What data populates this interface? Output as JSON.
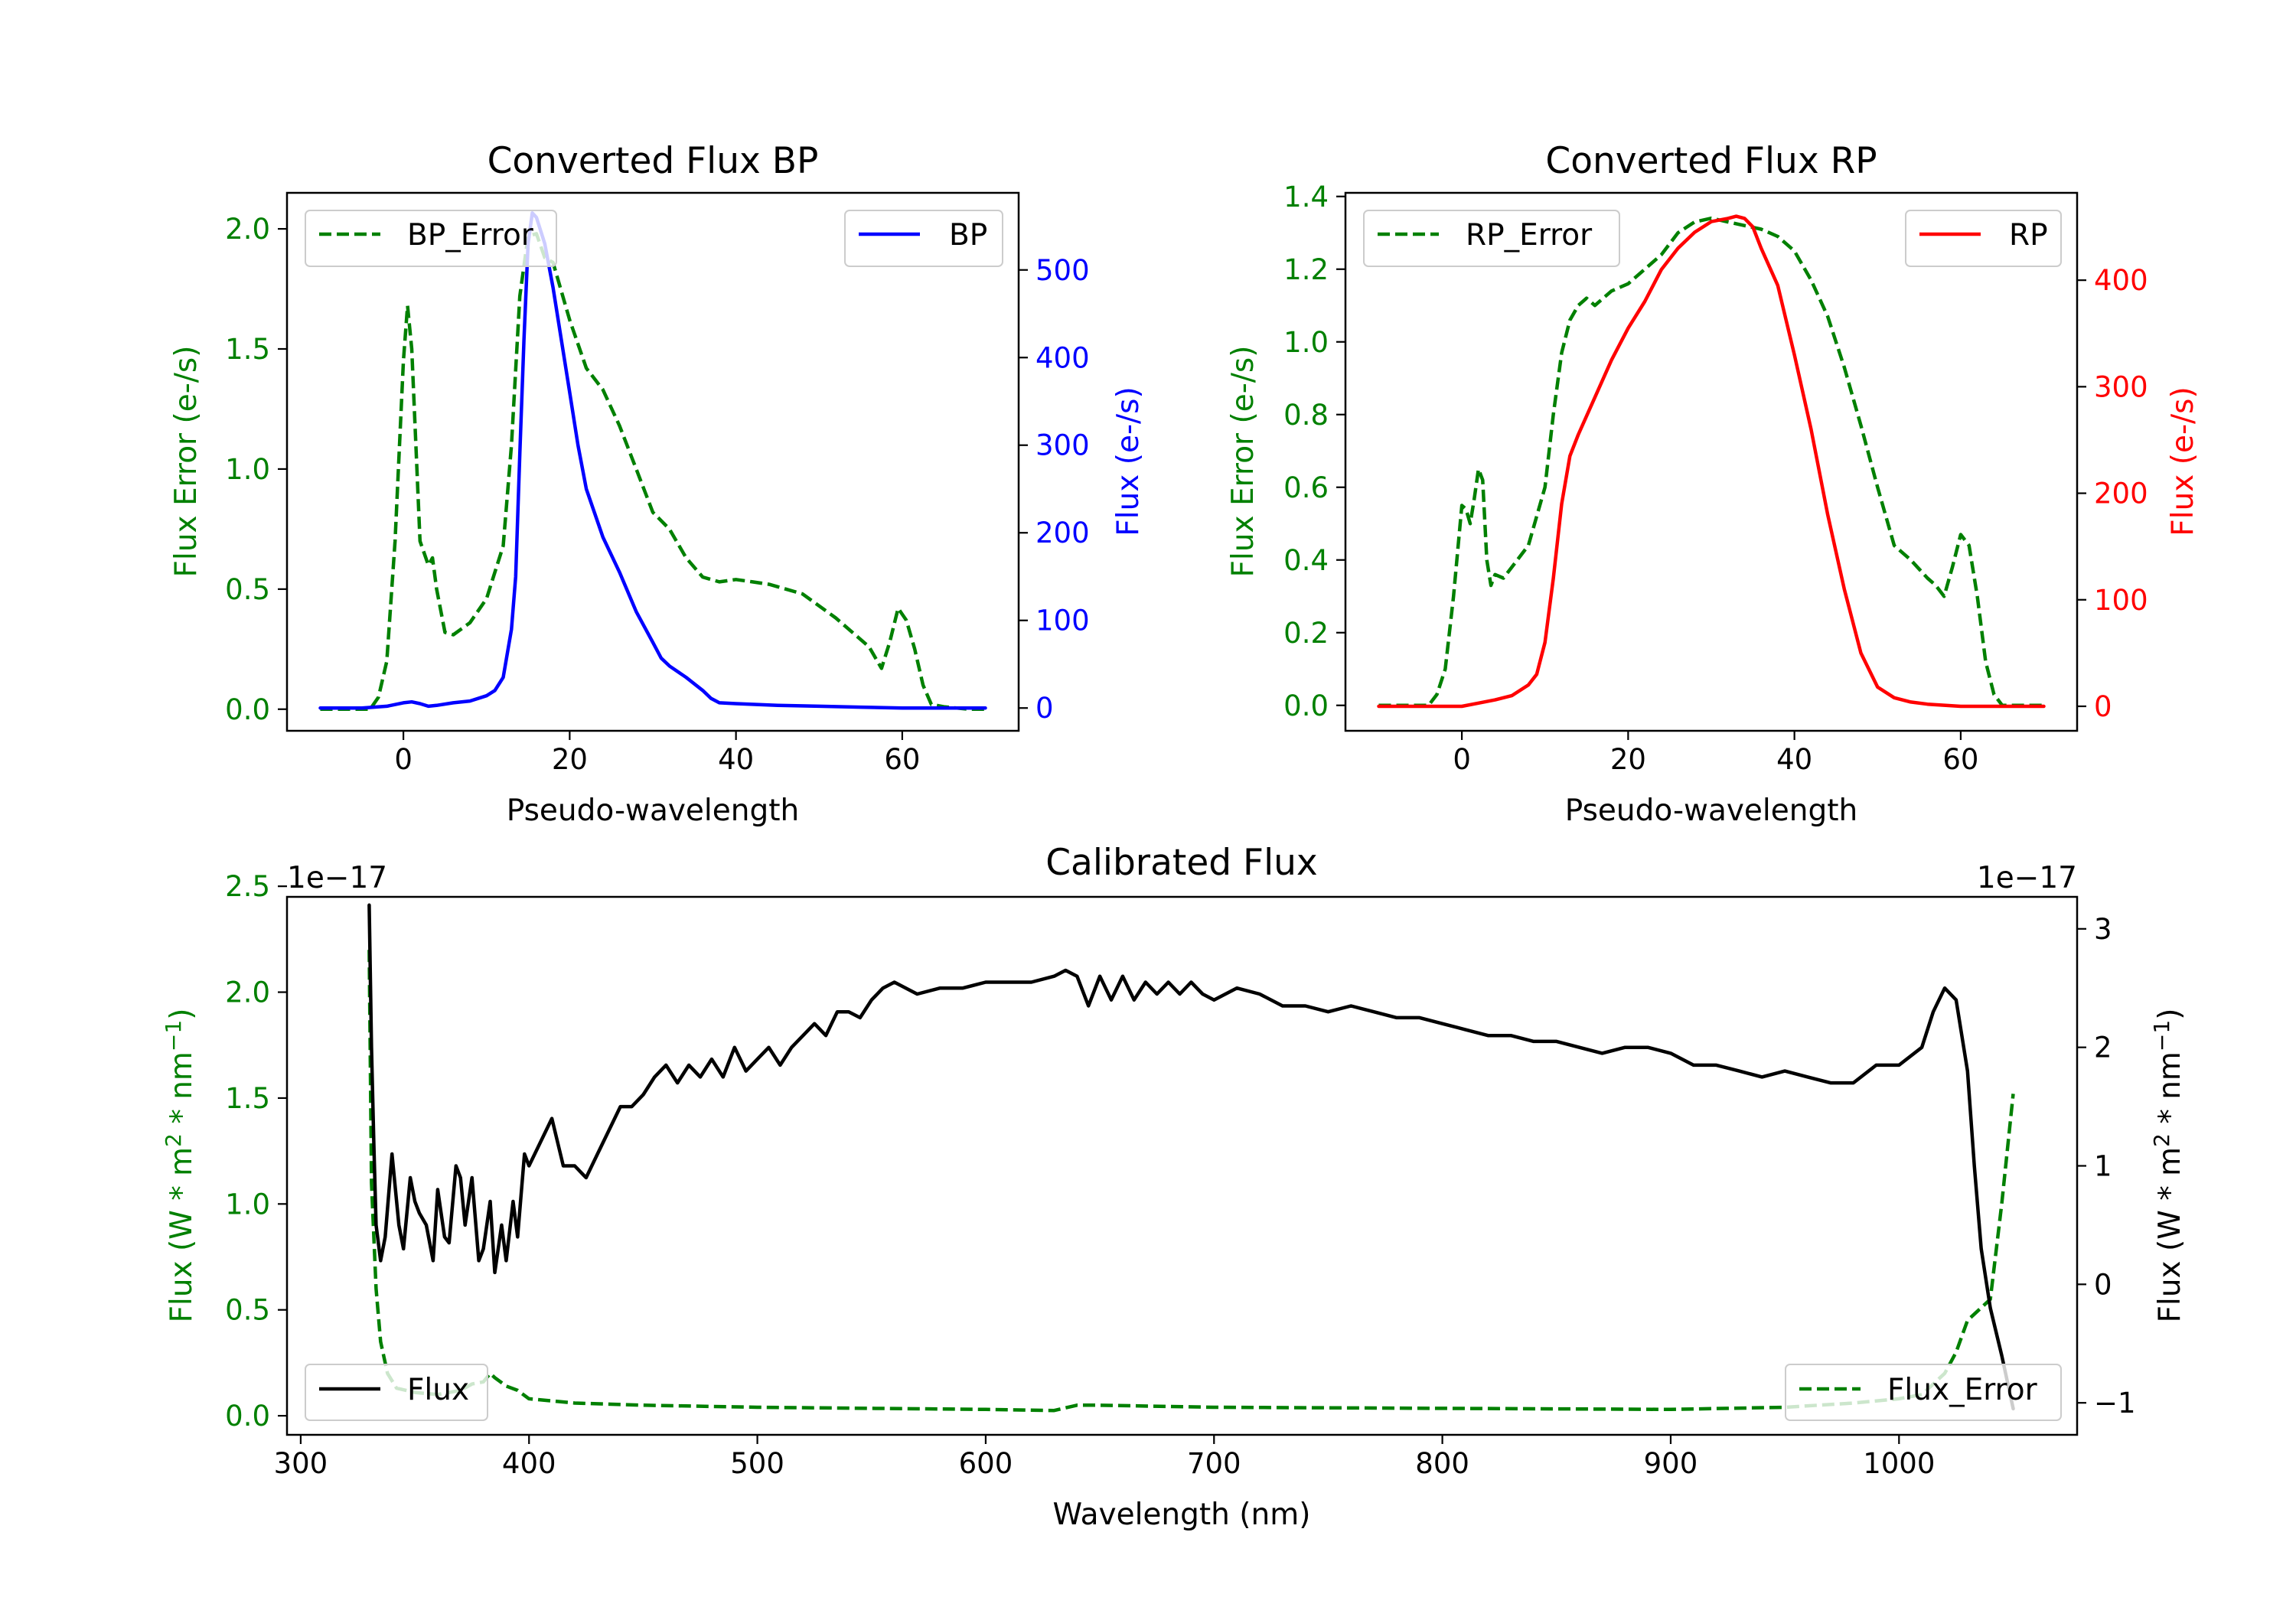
{
  "chart_data": [
    {
      "type": "line",
      "title": "Converted Flux BP",
      "xlabel": "Pseudo-wavelength",
      "ylabel_left": "Flux Error (e-/s)",
      "ylabel_right": "Flux (e-/s)",
      "xlim": [
        -14,
        74
      ],
      "ylim_left": [
        -0.09,
        2.15
      ],
      "ylim_right": [
        -26,
        588
      ],
      "xticks": [
        0,
        20,
        40,
        60
      ],
      "yticks_left": [
        0.0,
        0.5,
        1.0,
        1.5,
        2.0
      ],
      "yticks_right": [
        0,
        100,
        200,
        300,
        400,
        500
      ],
      "legend_left": {
        "position": "upper left",
        "labels": [
          "BP_Error"
        ]
      },
      "legend_right": {
        "position": "upper right",
        "labels": [
          "BP"
        ]
      },
      "series": [
        {
          "name": "BP_Error",
          "axis": "left",
          "style": "dashed",
          "color": "#008000",
          "x": [
            -10,
            -4,
            -3,
            -2,
            -1,
            0,
            0.5,
            1,
            2,
            3,
            3.5,
            4,
            5,
            6,
            8,
            10,
            12,
            13,
            14,
            15,
            16,
            17,
            18,
            20,
            22,
            24,
            26,
            28,
            30,
            32,
            34,
            36,
            38,
            40,
            42,
            44,
            46,
            48,
            50,
            52,
            54,
            56,
            57.5,
            58.5,
            59.5,
            60.5,
            61.5,
            62.5,
            63.5,
            65,
            68,
            70
          ],
          "y": [
            0.0,
            0.0,
            0.05,
            0.2,
            0.7,
            1.45,
            1.68,
            1.5,
            0.7,
            0.6,
            0.63,
            0.5,
            0.32,
            0.31,
            0.36,
            0.46,
            0.68,
            1.1,
            1.72,
            1.97,
            1.98,
            1.88,
            1.86,
            1.62,
            1.42,
            1.33,
            1.18,
            1.0,
            0.82,
            0.75,
            0.63,
            0.55,
            0.53,
            0.54,
            0.53,
            0.52,
            0.5,
            0.48,
            0.43,
            0.38,
            0.32,
            0.26,
            0.17,
            0.28,
            0.42,
            0.37,
            0.25,
            0.1,
            0.02,
            0.01,
            0.0,
            0.0
          ]
        },
        {
          "name": "BP",
          "axis": "right",
          "style": "solid",
          "color": "#0000ff",
          "x": [
            -10,
            -5,
            -2,
            0,
            1,
            2,
            3,
            4,
            6,
            8,
            10,
            11,
            12,
            13,
            13.5,
            14,
            14.5,
            15,
            15.5,
            16,
            17,
            18,
            19,
            20,
            21,
            22,
            24,
            26,
            28,
            30,
            31,
            32,
            34,
            36,
            37,
            38,
            40,
            45,
            50,
            55,
            60,
            65,
            70
          ],
          "y": [
            0,
            0,
            2,
            6,
            7,
            5,
            2,
            3,
            6,
            8,
            14,
            20,
            35,
            90,
            150,
            290,
            420,
            530,
            565,
            560,
            530,
            480,
            420,
            360,
            300,
            250,
            195,
            155,
            110,
            75,
            57,
            48,
            35,
            20,
            11,
            6,
            5,
            3,
            2,
            1,
            0,
            0,
            0
          ]
        }
      ]
    },
    {
      "type": "line",
      "title": "Converted Flux RP",
      "xlabel": "Pseudo-wavelength",
      "ylabel_left": "Flux Error (e-/s)",
      "ylabel_right": "Flux (e-/s)",
      "xlim": [
        -14,
        74
      ],
      "ylim_left": [
        -0.07,
        1.41
      ],
      "ylim_right": [
        -23,
        482
      ],
      "xticks": [
        0,
        20,
        40,
        60
      ],
      "yticks_left": [
        0.0,
        0.2,
        0.4,
        0.6,
        0.8,
        1.0,
        1.2,
        1.4
      ],
      "yticks_right": [
        0,
        100,
        200,
        300,
        400
      ],
      "legend_left": {
        "position": "upper left",
        "labels": [
          "RP_Error"
        ]
      },
      "legend_right": {
        "position": "upper right",
        "labels": [
          "RP"
        ]
      },
      "series": [
        {
          "name": "RP_Error",
          "axis": "left",
          "style": "dashed",
          "color": "#008000",
          "x": [
            -10,
            -4,
            -3,
            -2,
            -1,
            0,
            0.5,
            1,
            1.5,
            2,
            2.5,
            3,
            3.5,
            4,
            5,
            6,
            8,
            10,
            11,
            12,
            13,
            14,
            15,
            16,
            18,
            20,
            22,
            24,
            26,
            28,
            30,
            32,
            34,
            36,
            38,
            40,
            42,
            44,
            46,
            48,
            50,
            52,
            54,
            56,
            57,
            58,
            59,
            60,
            61,
            62,
            63,
            64,
            65,
            68,
            70
          ],
          "y": [
            0.0,
            0.0,
            0.03,
            0.1,
            0.3,
            0.55,
            0.54,
            0.5,
            0.57,
            0.65,
            0.62,
            0.4,
            0.33,
            0.36,
            0.35,
            0.38,
            0.44,
            0.6,
            0.8,
            0.97,
            1.06,
            1.1,
            1.12,
            1.1,
            1.14,
            1.16,
            1.2,
            1.24,
            1.3,
            1.33,
            1.34,
            1.33,
            1.32,
            1.31,
            1.29,
            1.25,
            1.17,
            1.07,
            0.93,
            0.77,
            0.6,
            0.44,
            0.4,
            0.35,
            0.33,
            0.3,
            0.38,
            0.47,
            0.44,
            0.3,
            0.12,
            0.03,
            0.0,
            0.0,
            0.0
          ]
        },
        {
          "name": "RP",
          "axis": "right",
          "style": "solid",
          "color": "#ff0000",
          "x": [
            -10,
            -4,
            0,
            2,
            4,
            6,
            8,
            9,
            10,
            11,
            12,
            13,
            14,
            16,
            18,
            20,
            22,
            24,
            26,
            28,
            30,
            32,
            33,
            34,
            35,
            36,
            38,
            40,
            42,
            44,
            46,
            48,
            50,
            52,
            54,
            56,
            58,
            60,
            65,
            70
          ],
          "y": [
            0,
            0,
            0,
            3,
            6,
            10,
            20,
            30,
            60,
            120,
            190,
            235,
            255,
            290,
            325,
            355,
            380,
            410,
            430,
            445,
            455,
            458,
            460,
            458,
            450,
            430,
            395,
            330,
            260,
            180,
            110,
            50,
            18,
            8,
            4,
            2,
            1,
            0,
            0,
            0
          ]
        }
      ]
    },
    {
      "type": "line",
      "title": "Calibrated Flux",
      "xlabel": "Wavelength (nm)",
      "ylabel_left": "Flux (W * m$^2$ * nm$^{-1}$)",
      "ylabel_left_display": [
        "Flux (W * m",
        "2",
        " * nm",
        "−1",
        ")"
      ],
      "ylabel_right_display": [
        "Flux (W * m",
        "2",
        " * nm",
        "−1",
        ")"
      ],
      "offset_left": "1e−17",
      "offset_right": "1e−17",
      "xlim": [
        294,
        1078
      ],
      "ylim_left": [
        -0.09,
        2.45
      ],
      "ylim_right": [
        -1.27,
        3.27
      ],
      "xticks": [
        300,
        400,
        500,
        600,
        700,
        800,
        900,
        1000
      ],
      "yticks_left": [
        "0.0",
        "0.5",
        "1.0",
        "1.5",
        "2.0",
        "2.5"
      ],
      "yticks_right": [
        "−1",
        "0",
        "1",
        "2",
        "3"
      ],
      "yticks_left_values": [
        0.0,
        0.5,
        1.0,
        1.5,
        2.0,
        2.5
      ],
      "yticks_right_values": [
        -1,
        0,
        1,
        2,
        3
      ],
      "legend_left": {
        "position": "lower left",
        "labels": [
          "Flux"
        ]
      },
      "legend_right": {
        "position": "lower right",
        "labels": [
          "Flux_Error"
        ]
      },
      "series": [
        {
          "name": "Flux_Error",
          "axis": "left",
          "style": "dashed",
          "color": "#008000",
          "x": [
            330,
            331,
            333,
            335,
            338,
            342,
            350,
            360,
            370,
            375,
            380,
            383,
            385,
            390,
            395,
            400,
            420,
            450,
            500,
            550,
            600,
            630,
            640,
            650,
            700,
            800,
            900,
            950,
            980,
            1000,
            1010,
            1015,
            1020,
            1025,
            1030,
            1035,
            1040,
            1045,
            1050
          ],
          "y": [
            2.2,
            1.1,
            0.6,
            0.35,
            0.2,
            0.13,
            0.11,
            0.1,
            0.12,
            0.15,
            0.16,
            0.2,
            0.18,
            0.14,
            0.12,
            0.08,
            0.06,
            0.05,
            0.04,
            0.035,
            0.03,
            0.025,
            0.05,
            0.05,
            0.04,
            0.035,
            0.03,
            0.04,
            0.06,
            0.08,
            0.1,
            0.15,
            0.2,
            0.3,
            0.45,
            0.5,
            0.55,
            1.0,
            1.52
          ]
        },
        {
          "name": "Flux",
          "axis": "right",
          "style": "solid",
          "color": "#000000",
          "x": [
            330,
            331,
            332,
            333,
            335,
            337,
            340,
            343,
            345,
            348,
            350,
            352,
            355,
            358,
            360,
            363,
            365,
            368,
            370,
            372,
            375,
            378,
            380,
            383,
            385,
            388,
            390,
            393,
            395,
            398,
            400,
            405,
            410,
            415,
            420,
            425,
            430,
            435,
            440,
            445,
            450,
            455,
            460,
            465,
            470,
            475,
            480,
            485,
            490,
            495,
            500,
            505,
            510,
            515,
            520,
            525,
            530,
            535,
            540,
            545,
            550,
            555,
            560,
            570,
            580,
            590,
            600,
            610,
            620,
            630,
            635,
            640,
            645,
            650,
            655,
            660,
            665,
            670,
            675,
            680,
            685,
            690,
            695,
            700,
            710,
            720,
            730,
            740,
            750,
            760,
            770,
            780,
            790,
            800,
            810,
            820,
            830,
            840,
            850,
            860,
            870,
            880,
            890,
            900,
            910,
            920,
            930,
            940,
            950,
            960,
            970,
            980,
            990,
            1000,
            1010,
            1015,
            1020,
            1025,
            1030,
            1033,
            1036,
            1040,
            1045,
            1050
          ],
          "y": [
            3.2,
            2.0,
            1.2,
            0.5,
            0.2,
            0.4,
            1.1,
            0.5,
            0.3,
            0.9,
            0.7,
            0.6,
            0.5,
            0.2,
            0.8,
            0.4,
            0.35,
            1.0,
            0.9,
            0.5,
            0.9,
            0.2,
            0.3,
            0.7,
            0.1,
            0.5,
            0.2,
            0.7,
            0.4,
            1.1,
            1.0,
            1.2,
            1.4,
            1.0,
            1.0,
            0.9,
            1.1,
            1.3,
            1.5,
            1.5,
            1.6,
            1.75,
            1.85,
            1.7,
            1.85,
            1.75,
            1.9,
            1.75,
            2.0,
            1.8,
            1.9,
            2.0,
            1.85,
            2.0,
            2.1,
            2.2,
            2.1,
            2.3,
            2.3,
            2.25,
            2.4,
            2.5,
            2.55,
            2.45,
            2.5,
            2.5,
            2.55,
            2.55,
            2.55,
            2.6,
            2.65,
            2.6,
            2.35,
            2.6,
            2.4,
            2.6,
            2.4,
            2.55,
            2.45,
            2.55,
            2.45,
            2.55,
            2.45,
            2.4,
            2.5,
            2.45,
            2.35,
            2.35,
            2.3,
            2.35,
            2.3,
            2.25,
            2.25,
            2.2,
            2.15,
            2.1,
            2.1,
            2.05,
            2.05,
            2.0,
            1.95,
            2.0,
            2.0,
            1.95,
            1.85,
            1.85,
            1.8,
            1.75,
            1.8,
            1.75,
            1.7,
            1.7,
            1.85,
            1.85,
            2.0,
            2.3,
            2.5,
            2.4,
            1.8,
            1.0,
            0.3,
            -0.2,
            -0.6,
            -1.05
          ]
        }
      ]
    }
  ]
}
